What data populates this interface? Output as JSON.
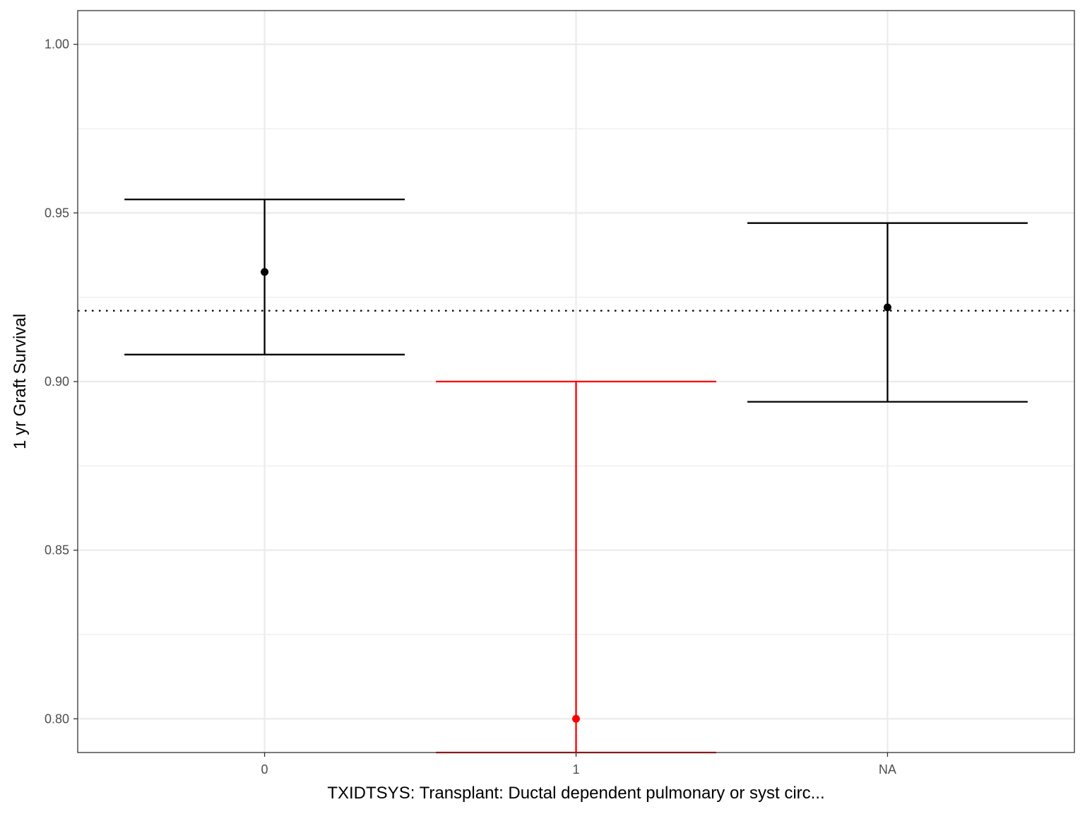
{
  "chart_data": {
    "type": "errorbar",
    "xlabel": "TXIDTSYS: Transplant: Ductal dependent pulmonary or syst circ...",
    "ylabel": "1 yr Graft Survival",
    "categories": [
      "0",
      "1",
      "NA"
    ],
    "ylim": [
      0.79,
      1.01
    ],
    "y_ticks": [
      "0.80",
      "0.85",
      "0.90",
      "0.95",
      "1.00"
    ],
    "y_minor_ticks": [
      0.825,
      0.875,
      0.925,
      0.975
    ],
    "reference_line": 0.921,
    "grid": true,
    "points": [
      {
        "category": "0",
        "estimate": 0.9325,
        "lower": 0.908,
        "upper": 0.954,
        "color": "#000000"
      },
      {
        "category": "1",
        "estimate": 0.8,
        "lower": 0.79,
        "upper": 0.9,
        "color": "#ff0000"
      },
      {
        "category": "NA",
        "estimate": 0.922,
        "lower": 0.894,
        "upper": 0.947,
        "color": "#000000"
      }
    ]
  }
}
